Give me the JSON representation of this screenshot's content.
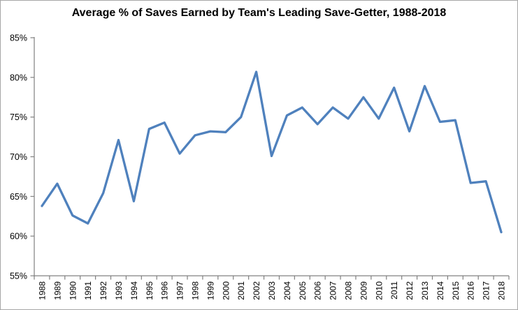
{
  "chart_data": {
    "type": "line",
    "title": "Average % of Saves Earned by Team's Leading Save-Getter, 1988-2018",
    "categories": [
      "1988",
      "1989",
      "1990",
      "1991",
      "1992",
      "1993",
      "1994",
      "1995",
      "1996",
      "1997",
      "1998",
      "1999",
      "2000",
      "2001",
      "2002",
      "2003",
      "2004",
      "2005",
      "2006",
      "2007",
      "2008",
      "2009",
      "2010",
      "2011",
      "2012",
      "2013",
      "2014",
      "2015",
      "2016",
      "2017",
      "2018"
    ],
    "values": [
      63.8,
      66.6,
      62.6,
      61.6,
      65.4,
      72.1,
      64.4,
      73.5,
      74.3,
      70.4,
      72.7,
      73.2,
      73.1,
      75.0,
      80.7,
      70.1,
      75.2,
      76.2,
      74.1,
      76.2,
      74.8,
      77.5,
      74.8,
      78.7,
      73.2,
      78.9,
      74.4,
      74.6,
      66.7,
      66.9,
      60.5
    ],
    "xlabel": "",
    "ylabel": "",
    "ylim": [
      55,
      85
    ],
    "yticks": {
      "values": [
        85,
        80,
        75,
        70,
        65,
        60,
        55
      ],
      "labels": [
        "85%",
        "80%",
        "75%",
        "70%",
        "65%",
        "60%",
        "55%"
      ]
    },
    "grid": false,
    "legend_position": "none",
    "x_label_rotation_deg": -90,
    "colors": {
      "line": "#4F81BD",
      "axis": "#808080",
      "tick_labels": "#000000",
      "title": "#000000",
      "frame_border": "#A6A6A6",
      "background": "#FFFFFF"
    }
  }
}
